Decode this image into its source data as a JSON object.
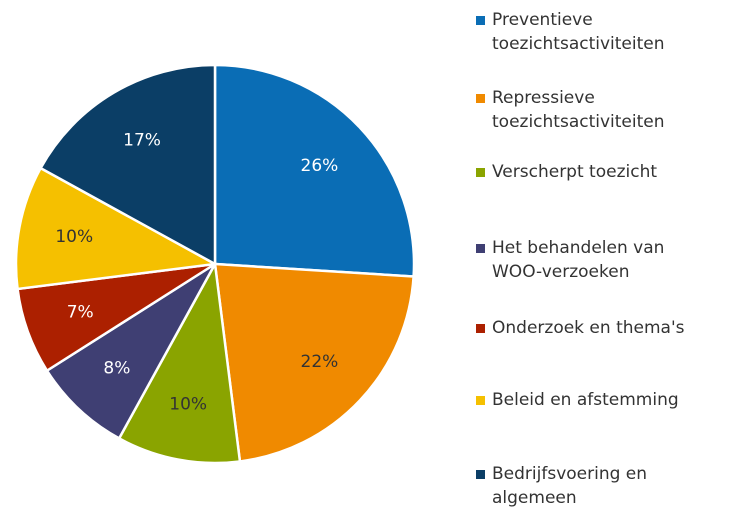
{
  "chart_data": {
    "type": "pie",
    "categories": [
      "Preventieve toezichtsactiviteiten",
      "Repressieve toezichtsactiviteiten",
      "Verscherpt toezicht",
      "Het behandelen van WOO-verzoeken",
      "Onderzoek en thema's",
      "Beleid en afstemming",
      "Bedrijfsvoering en algemeen"
    ],
    "values": [
      26,
      22,
      10,
      8,
      7,
      10,
      17
    ],
    "value_labels": [
      "26%",
      "22%",
      "10%",
      "8%",
      "7%",
      "10%",
      "17%"
    ],
    "colors": [
      "#0a6db5",
      "#f08a00",
      "#8aa400",
      "#3f3f73",
      "#ac2000",
      "#f5c000",
      "#0b3e66"
    ],
    "legend": "right"
  }
}
